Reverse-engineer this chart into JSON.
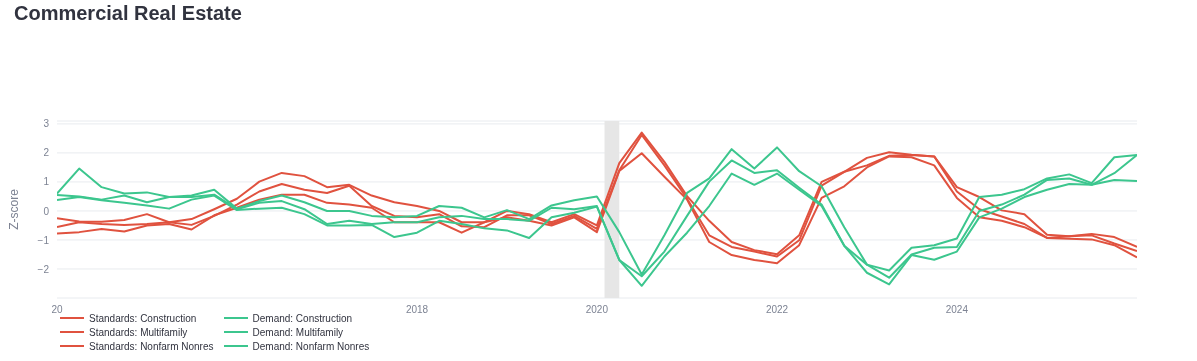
{
  "chart_data": {
    "type": "line",
    "title": "Commercial Real Estate",
    "ylabel": "Z-score",
    "x": [
      "2014-01",
      "2014-04",
      "2014-07",
      "2014-10",
      "2015-01",
      "2015-04",
      "2015-07",
      "2015-10",
      "2016-01",
      "2016-04",
      "2016-07",
      "2016-10",
      "2017-01",
      "2017-04",
      "2017-07",
      "2017-10",
      "2018-01",
      "2018-04",
      "2018-07",
      "2018-10",
      "2019-01",
      "2019-04",
      "2019-07",
      "2019-10",
      "2020-01",
      "2020-04",
      "2020-07",
      "2020-10",
      "2021-01",
      "2021-04",
      "2021-07",
      "2021-10",
      "2022-01",
      "2022-04",
      "2022-07",
      "2022-10",
      "2023-01",
      "2023-04",
      "2023-07",
      "2023-10",
      "2024-01",
      "2024-04",
      "2024-07",
      "2024-10",
      "2025-01",
      "2025-04",
      "2025-07",
      "2025-10",
      "2026-01"
    ],
    "series": [
      {
        "name": "Standards: Construction",
        "color": "#e0523f",
        "values": [
          -0.25,
          -0.36,
          -0.37,
          -0.31,
          -0.11,
          -0.39,
          -0.28,
          0.06,
          0.42,
          1.01,
          1.31,
          1.2,
          0.82,
          0.9,
          0.53,
          0.3,
          0.17,
          0.0,
          -0.39,
          -0.39,
          0.0,
          -0.11,
          -0.39,
          -0.11,
          -0.5,
          1.65,
          2.7,
          1.69,
          0.51,
          -0.34,
          -1.07,
          -1.35,
          -1.49,
          -0.84,
          1.0,
          1.35,
          1.83,
          2.02,
          1.94,
          1.88,
          0.82,
          0.48,
          0.02,
          -0.11,
          -0.82,
          -0.87,
          -0.79,
          -0.9,
          -1.24
        ]
      },
      {
        "name": "Standards: Multifamily",
        "color": "#e0523f",
        "values": [
          -0.55,
          -0.39,
          -0.45,
          -0.48,
          -0.45,
          -0.39,
          -0.48,
          -0.17,
          0.22,
          0.67,
          0.93,
          0.73,
          0.62,
          0.87,
          0.17,
          -0.17,
          -0.22,
          -0.11,
          -0.53,
          -0.56,
          -0.15,
          -0.15,
          -0.45,
          -0.17,
          -0.62,
          1.4,
          2.62,
          1.57,
          0.42,
          -0.84,
          -1.24,
          -1.4,
          -1.57,
          -1.01,
          0.87,
          1.35,
          1.57,
          1.9,
          1.93,
          1.88,
          0.67,
          0.06,
          -0.19,
          -0.45,
          -0.93,
          -0.87,
          -0.84,
          -1.12,
          -1.38
        ]
      },
      {
        "name": "Standards: Nonfarm Nonres",
        "color": "#e0523f",
        "values": [
          -0.78,
          -0.73,
          -0.62,
          -0.71,
          -0.5,
          -0.45,
          -0.64,
          -0.15,
          0.11,
          0.39,
          0.56,
          0.56,
          0.28,
          0.22,
          0.11,
          -0.39,
          -0.39,
          -0.39,
          -0.75,
          -0.39,
          -0.22,
          -0.34,
          -0.5,
          -0.22,
          -0.73,
          1.38,
          1.99,
          1.18,
          0.39,
          -1.07,
          -1.52,
          -1.69,
          -1.8,
          -1.18,
          0.45,
          0.85,
          1.5,
          1.88,
          1.85,
          1.57,
          0.45,
          -0.22,
          -0.34,
          -0.56,
          -0.93,
          -0.96,
          -0.98,
          -1.18,
          -1.6
        ]
      },
      {
        "name": "Demand: Construction",
        "color": "#3cc68e",
        "values": [
          0.6,
          1.46,
          0.82,
          0.6,
          0.64,
          0.48,
          0.53,
          0.73,
          0.08,
          0.34,
          0.53,
          0.3,
          0.0,
          0.0,
          -0.17,
          -0.22,
          -0.17,
          0.17,
          0.11,
          -0.22,
          0.03,
          -0.28,
          0.19,
          0.37,
          0.5,
          -0.73,
          -2.19,
          -0.84,
          0.62,
          1.12,
          2.13,
          1.46,
          2.19,
          1.37,
          0.85,
          -0.56,
          -1.85,
          -2.05,
          -1.27,
          -1.18,
          -0.95,
          0.48,
          0.56,
          0.75,
          1.12,
          1.26,
          0.96,
          1.85,
          1.93
        ]
      },
      {
        "name": "Demand: Multifamily",
        "color": "#3cc68e",
        "values": [
          0.55,
          0.5,
          0.39,
          0.53,
          0.3,
          0.48,
          0.48,
          0.56,
          0.06,
          0.28,
          0.34,
          0.06,
          -0.45,
          -0.34,
          -0.45,
          -0.39,
          -0.39,
          -0.22,
          -0.17,
          -0.28,
          -0.28,
          -0.34,
          0.11,
          0.06,
          0.17,
          -1.69,
          -2.25,
          -1.4,
          -0.17,
          1.01,
          1.74,
          1.31,
          1.4,
          0.8,
          0.22,
          -1.2,
          -1.85,
          -2.3,
          -1.5,
          -1.27,
          -1.24,
          0.0,
          0.22,
          0.56,
          1.07,
          1.12,
          0.9,
          1.3,
          1.93
        ]
      },
      {
        "name": "Demand: Nonfarm Nonres",
        "color": "#3cc68e",
        "values": [
          0.38,
          0.48,
          0.37,
          0.28,
          0.19,
          0.08,
          0.39,
          0.53,
          0.03,
          0.08,
          0.11,
          -0.11,
          -0.5,
          -0.5,
          -0.48,
          -0.9,
          -0.75,
          -0.34,
          -0.45,
          -0.6,
          -0.67,
          -0.93,
          -0.22,
          -0.06,
          0.15,
          -1.69,
          -2.58,
          -1.57,
          -0.75,
          0.17,
          1.29,
          0.9,
          1.29,
          0.73,
          0.17,
          -1.2,
          -2.13,
          -2.53,
          -1.52,
          -1.68,
          -1.4,
          -0.22,
          0.08,
          0.48,
          0.73,
          0.93,
          0.9,
          1.07,
          1.03
        ]
      }
    ],
    "xlim": [
      "2014-01",
      "2026-01"
    ],
    "xticks": [
      {
        "value": "2014-01",
        "label": "20"
      },
      {
        "value": "2018-01",
        "label": "2018"
      },
      {
        "value": "2020-01",
        "label": "2020"
      },
      {
        "value": "2022-01",
        "label": "2022"
      },
      {
        "value": "2024-01",
        "label": "2024"
      }
    ],
    "ylim": [
      -3,
      3.1
    ],
    "yticks": [
      -2,
      -1,
      0,
      1,
      2,
      3
    ],
    "bands": [
      {
        "axis": "x",
        "from": "2020-02",
        "to": "2020-04",
        "color": "#e6e6e6"
      }
    ],
    "grid": "y",
    "legend": "bottom left",
    "line_style": "solid",
    "marker": "none"
  }
}
